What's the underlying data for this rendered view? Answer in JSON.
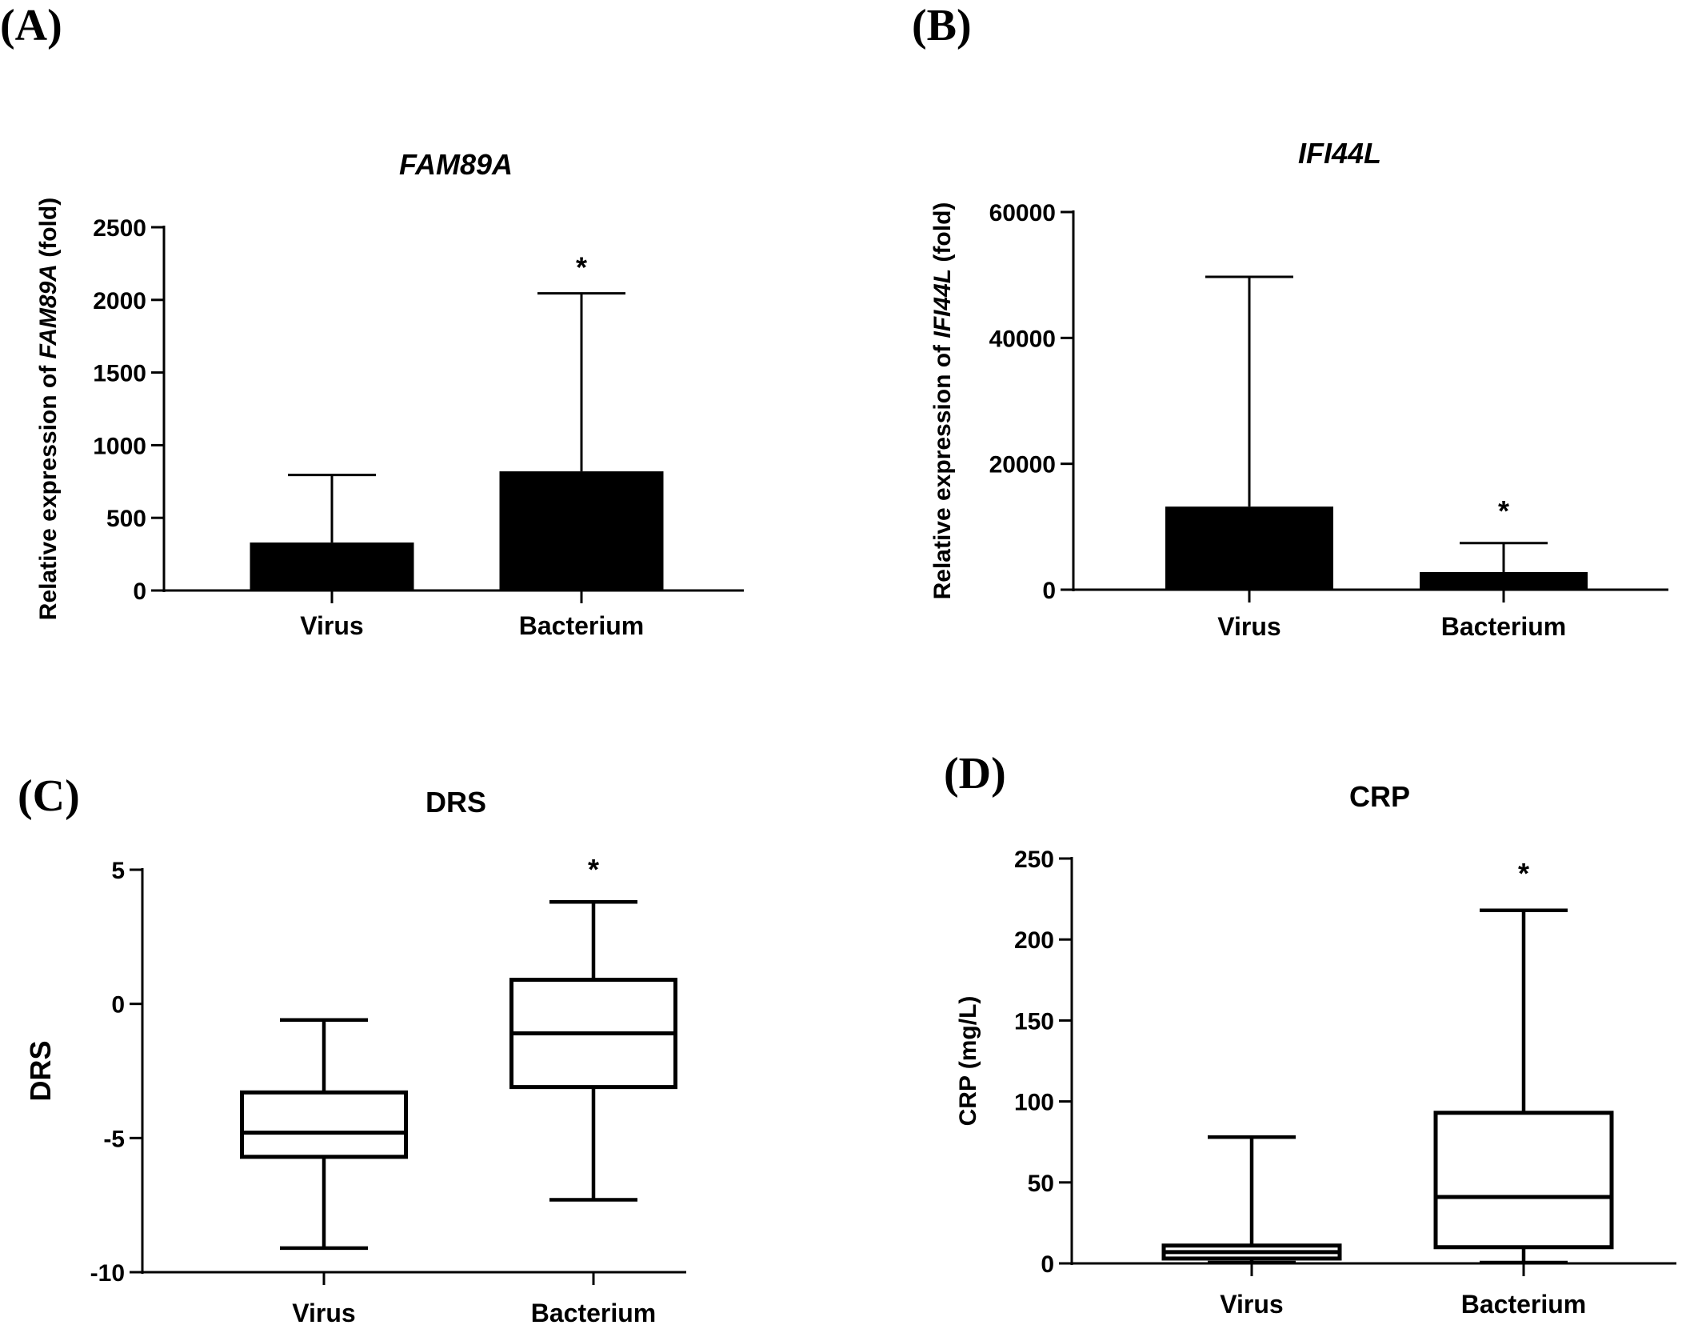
{
  "chart_data": [
    {
      "panel_label": "(A)",
      "type": "bar",
      "title": "FAM89A",
      "ylabel": {
        "pre": "Relative expression of ",
        "italic": "FAM89A",
        "post": " (fold)"
      },
      "categories": [
        "Virus",
        "Bacterium"
      ],
      "values": [
        330,
        820
      ],
      "error_upper": [
        795,
        2045
      ],
      "significance": [
        "",
        "*"
      ],
      "ylim": [
        0,
        2500
      ],
      "yticks": [
        0,
        500,
        1000,
        1500,
        2000,
        2500
      ],
      "ytick_labels": [
        "0",
        "500",
        "1000",
        "1500",
        "2000",
        "2500"
      ]
    },
    {
      "panel_label": "(B)",
      "type": "bar",
      "title": "IFI44L",
      "ylabel": {
        "pre": "Relative expression of ",
        "italic": "IFI44L",
        "post": " (fold)"
      },
      "categories": [
        "Virus",
        "Bacterium"
      ],
      "values": [
        13200,
        2800
      ],
      "error_upper": [
        49700,
        7400
      ],
      "significance": [
        "",
        "*"
      ],
      "ylim": [
        0,
        60000
      ],
      "yticks": [
        0,
        20000,
        40000,
        60000
      ],
      "ytick_labels": [
        "0",
        "20000",
        "40000",
        "60000"
      ]
    },
    {
      "panel_label": "(C)",
      "type": "box",
      "title": "DRS",
      "ylabel": {
        "pre": "DRS",
        "italic": "",
        "post": ""
      },
      "categories": [
        "Virus",
        "Bacterium"
      ],
      "boxes": [
        {
          "min": -9.1,
          "q1": -5.7,
          "median": -4.8,
          "q3": -3.3,
          "max": -0.6
        },
        {
          "min": -7.3,
          "q1": -3.1,
          "median": -1.1,
          "q3": 0.9,
          "max": 3.8
        }
      ],
      "significance": [
        "",
        "*"
      ],
      "ylim": [
        -10,
        5
      ],
      "yticks": [
        -10,
        -5,
        0,
        5
      ],
      "ytick_labels": [
        "-10",
        "-5",
        "0",
        "5"
      ]
    },
    {
      "panel_label": "(D)",
      "type": "box",
      "title": "CRP",
      "ylabel": {
        "pre": "CRP (mg/L)",
        "italic": "",
        "post": ""
      },
      "categories": [
        "Virus",
        "Bacterium"
      ],
      "boxes": [
        {
          "min": 0.5,
          "q1": 3,
          "median": 7,
          "q3": 11,
          "max": 78
        },
        {
          "min": 0.5,
          "q1": 10,
          "median": 41,
          "q3": 93,
          "max": 218
        }
      ],
      "significance": [
        "",
        "*"
      ],
      "ylim": [
        0,
        250
      ],
      "yticks": [
        0,
        50,
        100,
        150,
        200,
        250
      ],
      "ytick_labels": [
        "0",
        "50",
        "100",
        "150",
        "200",
        "250"
      ]
    }
  ]
}
